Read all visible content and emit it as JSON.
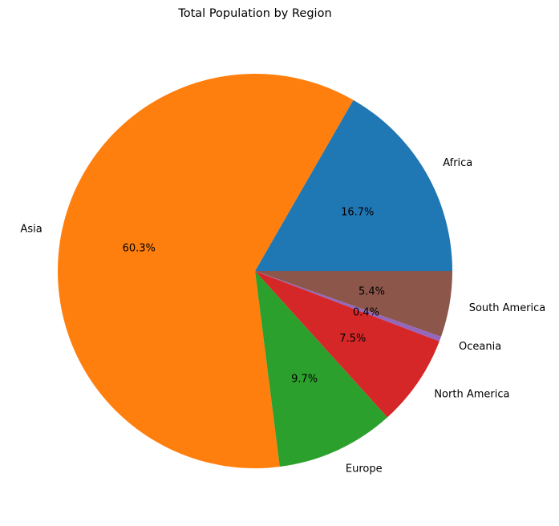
{
  "chart_data": {
    "type": "pie",
    "title": "Total Population by Region",
    "slices": [
      {
        "label": "Africa",
        "value": 16.7,
        "pct_label": "16.7%",
        "color": "#1f77b4"
      },
      {
        "label": "Asia",
        "value": 60.3,
        "pct_label": "60.3%",
        "color": "#ff7f0e"
      },
      {
        "label": "Europe",
        "value": 9.7,
        "pct_label": "9.7%",
        "color": "#2ca02c"
      },
      {
        "label": "North America",
        "value": 7.5,
        "pct_label": "7.5%",
        "color": "#d62728"
      },
      {
        "label": "Oceania",
        "value": 0.4,
        "pct_label": "0.4%",
        "color": "#9467bd"
      },
      {
        "label": "South America",
        "value": 5.4,
        "pct_label": "5.4%",
        "color": "#8c564b"
      }
    ],
    "start_angle_deg": 0,
    "direction": "counterclockwise"
  }
}
